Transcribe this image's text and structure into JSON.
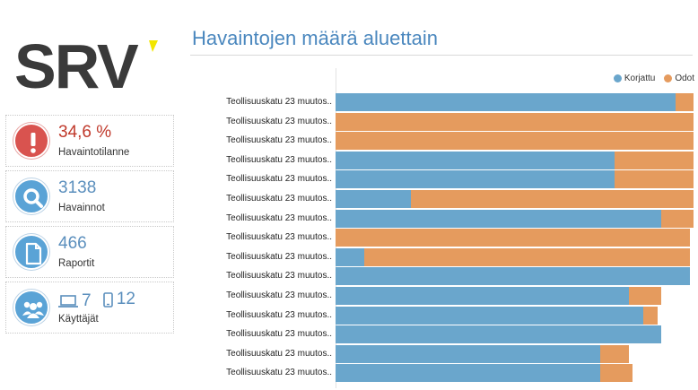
{
  "logo": {
    "text": "SRV",
    "accent_color": "#f2e600"
  },
  "cards": [
    {
      "value": "34,6 %",
      "label": "Havaintotilanne",
      "icon": "alert-icon",
      "color": "#d9534f"
    },
    {
      "value": "3138",
      "label": "Havainnot",
      "icon": "search-icon",
      "color": "#5aa3d6"
    },
    {
      "value": "466",
      "label": "Raportit",
      "icon": "document-icon",
      "color": "#5aa3d6"
    },
    {
      "laptop_value": "7",
      "mobile_value": "12",
      "label": "Käyttäjät",
      "icon": "users-icon",
      "color": "#5aa3d6"
    }
  ],
  "chart_title": "Havaintojen määrä aluettain",
  "chart_data": {
    "type": "bar",
    "orientation": "horizontal",
    "stacked": true,
    "categories": [
      "Teollisuuskatu 23 muutos..",
      "Teollisuuskatu 23 muutos..",
      "Teollisuuskatu 23 muutos..",
      "Teollisuuskatu 23 muutos..",
      "Teollisuuskatu 23 muutos..",
      "Teollisuuskatu 23 muutos..",
      "Teollisuuskatu 23 muutos..",
      "Teollisuuskatu 23 muutos..",
      "Teollisuuskatu 23 muutos..",
      "Teollisuuskatu 23 muutos..",
      "Teollisuuskatu 23 muutos..",
      "Teollisuuskatu 23 muutos..",
      "Teollisuuskatu 23 muutos..",
      "Teollisuuskatu 23 muutos..",
      "Teollisuuskatu 23 muutos.."
    ],
    "series": [
      {
        "name": "Korjattu",
        "color": "#6aa6cc",
        "values": [
          95,
          0,
          0,
          78,
          78,
          21,
          91,
          0,
          8,
          99,
          82,
          86,
          91,
          74,
          74
        ]
      },
      {
        "name": "Odot",
        "color": "#e59b5e",
        "values": [
          5,
          100,
          100,
          22,
          22,
          79,
          9,
          99,
          91,
          0,
          9,
          4,
          0,
          8,
          9
        ]
      }
    ],
    "xlim": [
      0,
      100
    ],
    "legend_position": "top-right"
  }
}
